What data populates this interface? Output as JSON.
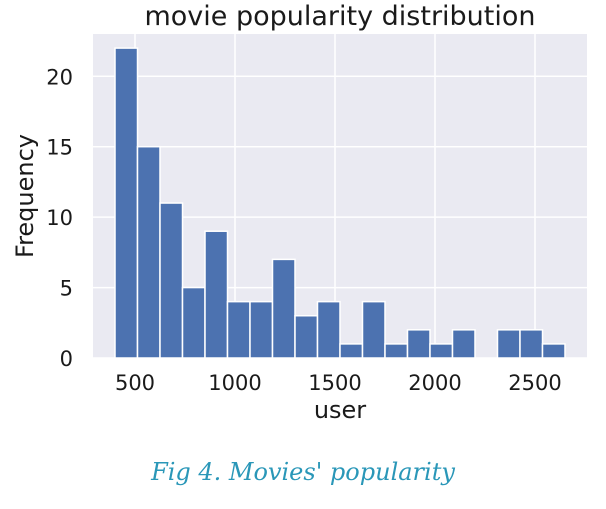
{
  "chart_data": {
    "type": "bar",
    "title": "movie popularity distribution",
    "xlabel": "user",
    "ylabel": "Frequency",
    "xlim": [
      290,
      2760
    ],
    "ylim": [
      0,
      23
    ],
    "xticks": [
      500,
      1000,
      1500,
      2000,
      2500
    ],
    "yticks": [
      0,
      5,
      10,
      15,
      20
    ],
    "bin_edges": [
      400,
      512.5,
      625,
      737.5,
      850,
      962.5,
      1075,
      1187.5,
      1300,
      1412.5,
      1525,
      1637.5,
      1750,
      1862.5,
      1975,
      2087.5,
      2200,
      2312.5,
      2425,
      2537.5,
      2650
    ],
    "values": [
      22,
      15,
      11,
      5,
      9,
      4,
      4,
      7,
      3,
      4,
      1,
      4,
      1,
      2,
      1,
      2,
      0,
      2,
      2,
      1
    ],
    "grid": true,
    "colors": {
      "bar": "#4c72b0",
      "background": "#eaeaf2",
      "grid": "#ffffff"
    }
  },
  "caption": "Fig 4. Movies' popularity"
}
